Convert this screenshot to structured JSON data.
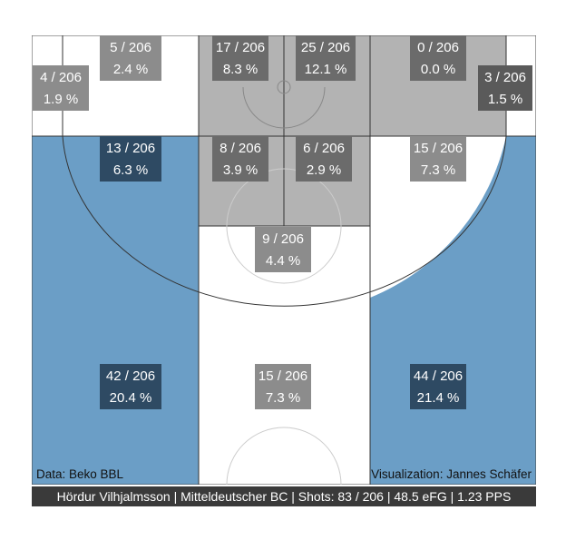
{
  "chart_data": {
    "type": "heatmap",
    "total_shots": 206,
    "zones": [
      {
        "id": "corner-left-three-upper",
        "made": 4,
        "pct": "1.9 %",
        "fill": "#ffffff",
        "box": "#8c8c8c"
      },
      {
        "id": "left-baseline-two",
        "made": 5,
        "pct": "2.4 %",
        "fill": "#ffffff",
        "box": "#8c8c8c"
      },
      {
        "id": "paint-left-low",
        "made": 17,
        "pct": "8.3 %",
        "fill": "#b3b3b3",
        "box": "#6b6b6b"
      },
      {
        "id": "paint-right-low",
        "made": 25,
        "pct": "12.1 %",
        "fill": "#b3b3b3",
        "box": "#6b6b6b"
      },
      {
        "id": "right-baseline-two",
        "made": 0,
        "pct": "0.0 %",
        "fill": "#b3b3b3",
        "box": "#6b6b6b"
      },
      {
        "id": "corner-right-three-upper",
        "made": 3,
        "pct": "1.5 %",
        "fill": "#b3b3b3",
        "box": "#5a5a5a"
      },
      {
        "id": "left-wing-two",
        "made": 13,
        "pct": "6.3 %",
        "fill": "#6b9ec6",
        "box": "#2e4a63"
      },
      {
        "id": "paint-left-high",
        "made": 8,
        "pct": "3.9 %",
        "fill": "#b3b3b3",
        "box": "#6b6b6b"
      },
      {
        "id": "paint-right-high",
        "made": 6,
        "pct": "2.9 %",
        "fill": "#b3b3b3",
        "box": "#6b6b6b"
      },
      {
        "id": "right-wing-two",
        "made": 15,
        "pct": "7.3 %",
        "fill": "#ffffff",
        "box": "#8c8c8c"
      },
      {
        "id": "free-throw-area",
        "made": 9,
        "pct": "4.4 %",
        "fill": "#ffffff",
        "box": "#8c8c8c"
      },
      {
        "id": "left-three",
        "made": 42,
        "pct": "20.4 %",
        "fill": "#6b9ec6",
        "box": "#2e4a63"
      },
      {
        "id": "top-three",
        "made": 15,
        "pct": "7.3 %",
        "fill": "#ffffff",
        "box": "#8c8c8c"
      },
      {
        "id": "right-three",
        "made": 44,
        "pct": "21.4 %",
        "fill": "#6b9ec6",
        "box": "#2e4a63"
      }
    ]
  },
  "credits": {
    "data_source": "Data: Beko BBL",
    "visualization": "Visualization: Jannes Schäfer"
  },
  "footer": {
    "text": "Hördur Vilhjalmsson | Mitteldeutscher BC | Shots: 83 / 206 | 48.5 eFG | 1.23 PPS"
  }
}
